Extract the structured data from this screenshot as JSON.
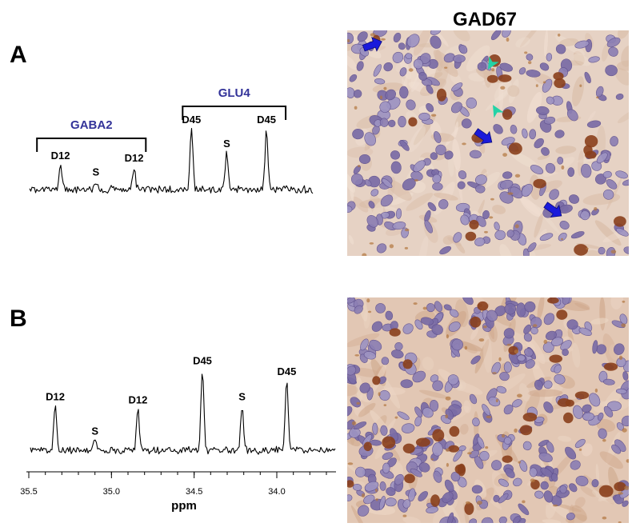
{
  "column_title": "GAD67",
  "panels": [
    {
      "letter": "A",
      "image_icon": "gad67-stained-tissue-micrograph-sparse-icon"
    },
    {
      "letter": "B",
      "image_icon": "gad67-stained-tissue-micrograph-dense-icon"
    }
  ],
  "arrows": {
    "blue_color": "#1a1adb",
    "teal_color": "#22d3a6"
  },
  "chart_data": [
    {
      "type": "line",
      "panel": "A",
      "xlim": [
        35.55,
        33.62
      ],
      "brackets": [
        {
          "label": "GABA2",
          "from": 35.5,
          "to": 34.76
        },
        {
          "label": "GLU4",
          "from": 34.51,
          "to": 33.81
        }
      ],
      "peaks": [
        {
          "x": 35.34,
          "height": 0.4,
          "label": "D12"
        },
        {
          "x": 35.1,
          "height": 0.13,
          "label": "S"
        },
        {
          "x": 34.84,
          "height": 0.36,
          "label": "D12"
        },
        {
          "x": 34.45,
          "height": 1.0,
          "label": "D45"
        },
        {
          "x": 34.21,
          "height": 0.6,
          "label": "S"
        },
        {
          "x": 33.94,
          "height": 1.0,
          "label": "D45"
        }
      ]
    },
    {
      "type": "line",
      "panel": "B",
      "xlabel": "ppm",
      "xlim": [
        35.5,
        33.62
      ],
      "xticks": [
        "35.5",
        "35.0",
        "34.5",
        "34.0"
      ],
      "tick_values": [
        35.5,
        35.0,
        34.5,
        34.0
      ],
      "peaks": [
        {
          "x": 35.34,
          "height": 0.52,
          "label": "D12"
        },
        {
          "x": 35.1,
          "height": 0.11,
          "label": "S"
        },
        {
          "x": 34.84,
          "height": 0.48,
          "label": "D12"
        },
        {
          "x": 34.45,
          "height": 0.95,
          "label": "D45"
        },
        {
          "x": 34.21,
          "height": 0.52,
          "label": "S"
        },
        {
          "x": 33.94,
          "height": 0.82,
          "label": "D45"
        }
      ]
    }
  ]
}
